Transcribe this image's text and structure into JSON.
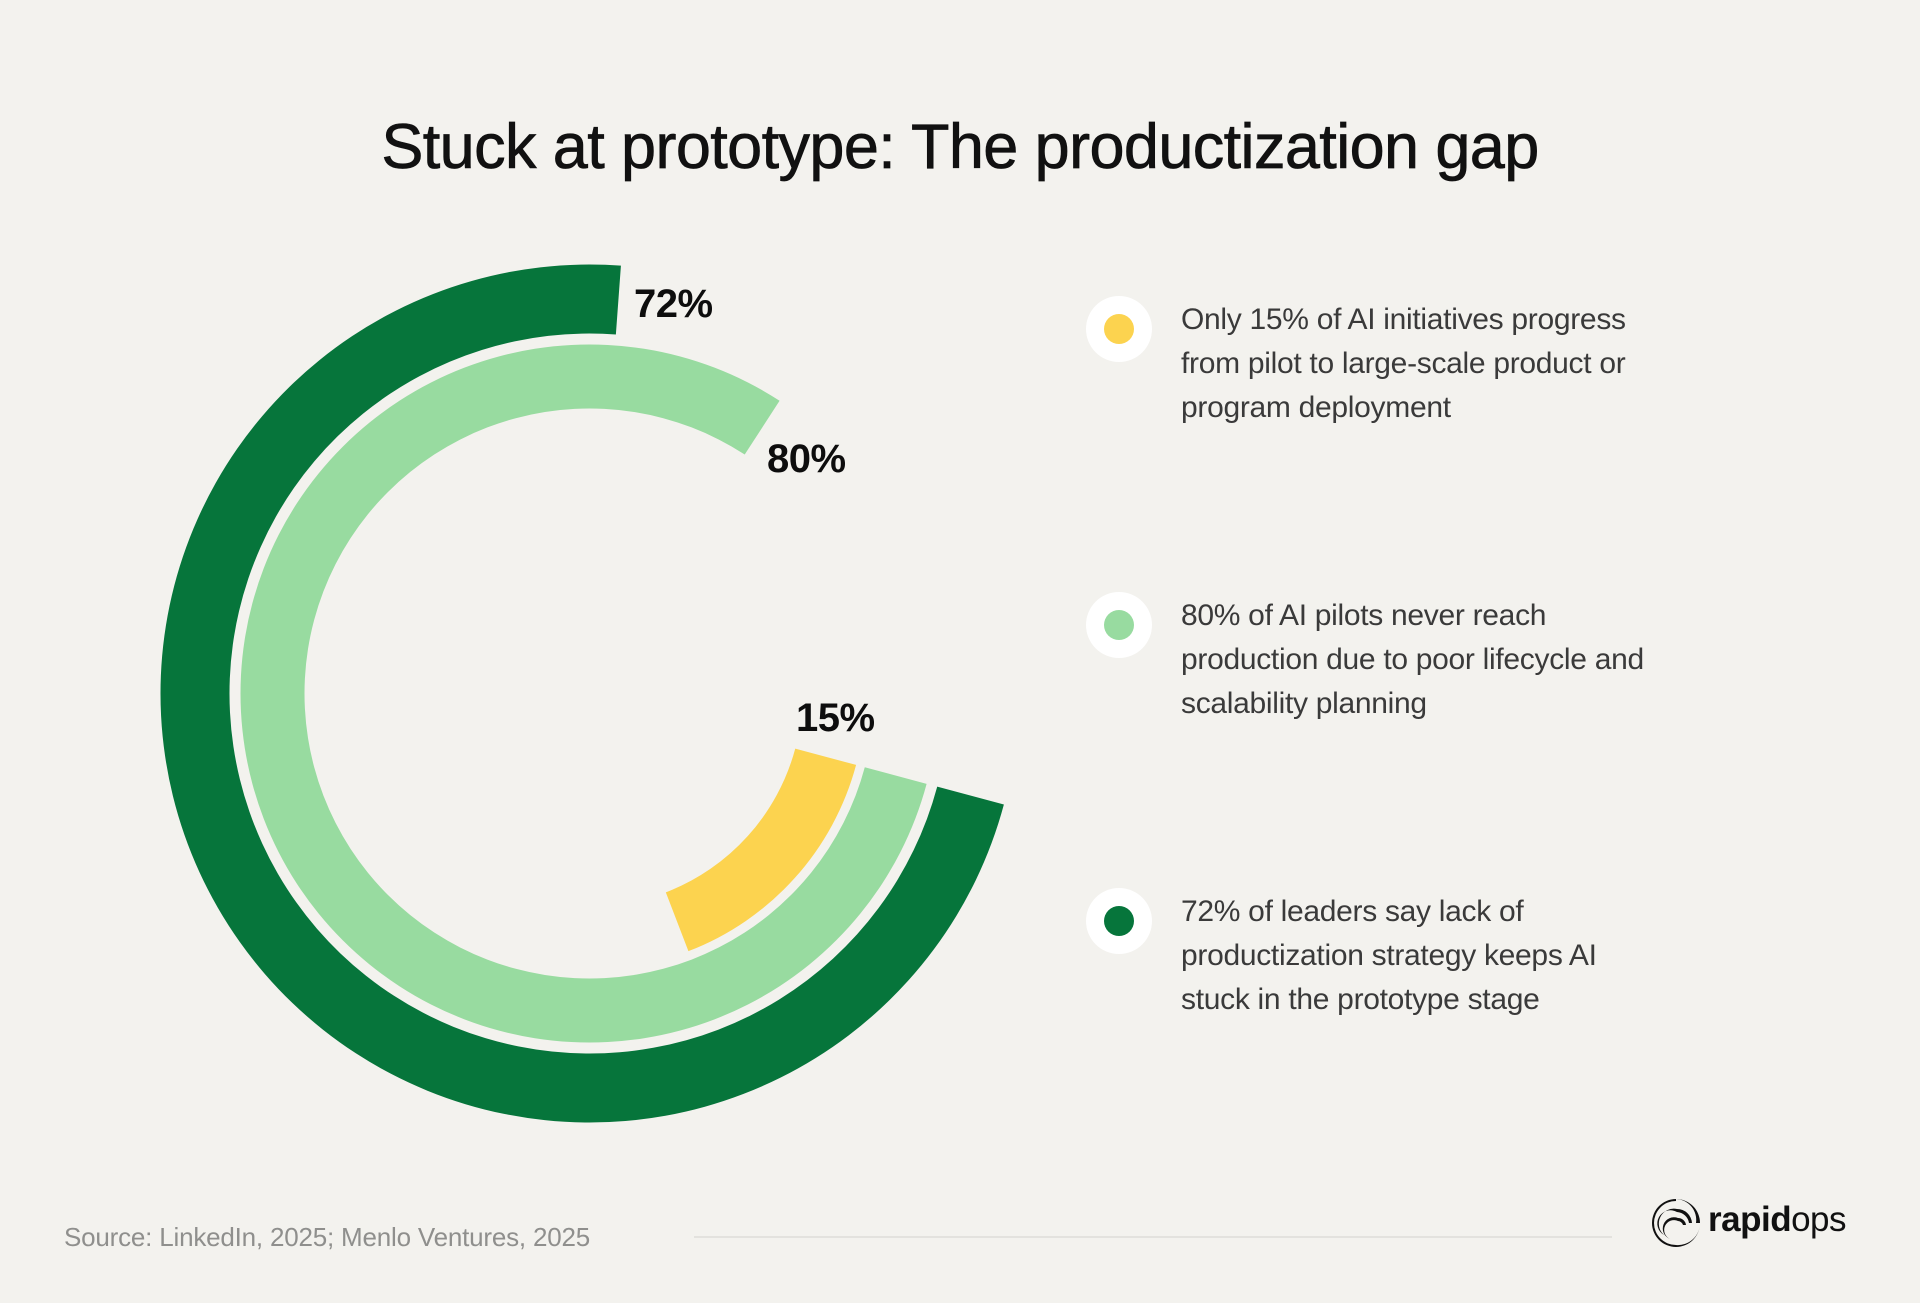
{
  "title": "Stuck at prototype: The productization gap",
  "chart_data": {
    "type": "radial-bar",
    "title": "Stuck at prototype: The productization gap",
    "unit": "%",
    "max": 100,
    "series": [
      {
        "name": "72% of leaders say lack of productization strategy keeps AI stuck in the prototype stage",
        "value": 72,
        "label": "72%",
        "color": "#06753B"
      },
      {
        "name": "80% of AI pilots never reach production due to poor lifecycle and scalability planning",
        "value": 80,
        "label": "80%",
        "color": "#98DBA0"
      },
      {
        "name": "Only 15% of AI initiatives progress from pilot to large-scale product or program deployment",
        "value": 15,
        "label": "15%",
        "color": "#FCD34F"
      }
    ]
  },
  "legend": [
    {
      "color": "#FCD34F",
      "icon": "yellow-dot-icon",
      "lines": [
        "Only 15% of AI initiatives progress",
        "from pilot to large-scale product or",
        "program deployment"
      ]
    },
    {
      "color": "#98DBA0",
      "icon": "light-green-dot-icon",
      "lines": [
        "80% of AI pilots never reach",
        "production due to poor lifecycle and",
        "scalability planning"
      ]
    },
    {
      "color": "#06753B",
      "icon": "dark-green-dot-icon",
      "lines": [
        "72% of leaders say lack of",
        "productization strategy keeps AI",
        "stuck in the prototype stage"
      ]
    }
  ],
  "footer": {
    "source": "Source: LinkedIn, 2025; Menlo Ventures, 2025",
    "logo": {
      "bold": "rapid",
      "light": "ops",
      "icon": "rapidops-logo-icon"
    }
  },
  "colors": {
    "background": "#F3F2EE",
    "dark_green": "#06753B",
    "light_green": "#98DBA0",
    "yellow": "#FCD34F"
  }
}
